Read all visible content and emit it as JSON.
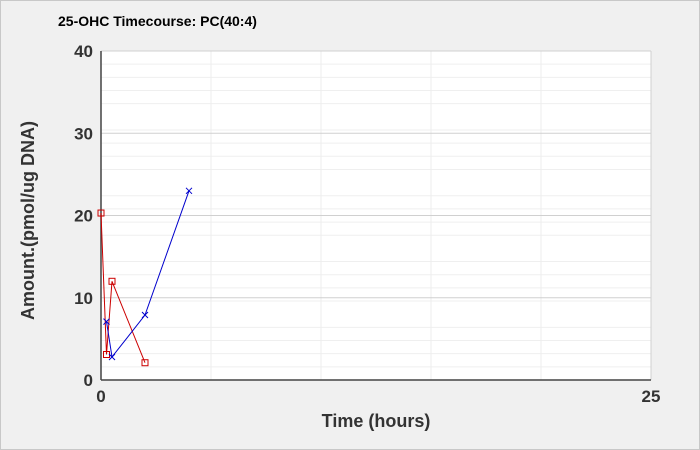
{
  "chart_data": {
    "type": "line",
    "title": "25-OHC Timecourse: PC(40:4)",
    "xlabel": "Time (hours)",
    "ylabel": "Amount.(pmol/ug DNA)",
    "xlim": [
      0,
      25
    ],
    "ylim": [
      0,
      40
    ],
    "x_ticks": [
      "0",
      "25"
    ],
    "y_ticks": [
      "0",
      "10",
      "20",
      "30",
      "40"
    ],
    "grid": true,
    "legend": "none",
    "series": [
      {
        "color": "#cc0000",
        "marker": "square",
        "points": [
          [
            0,
            20.3
          ],
          [
            0.25,
            3.1
          ],
          [
            0.5,
            12.0
          ],
          [
            2.0,
            2.1
          ]
        ]
      },
      {
        "color": "#0000cc",
        "marker": "x",
        "points": [
          [
            0.25,
            7.1
          ],
          [
            0.5,
            2.8
          ],
          [
            2.0,
            7.9
          ],
          [
            4.0,
            23.0
          ]
        ]
      }
    ]
  }
}
